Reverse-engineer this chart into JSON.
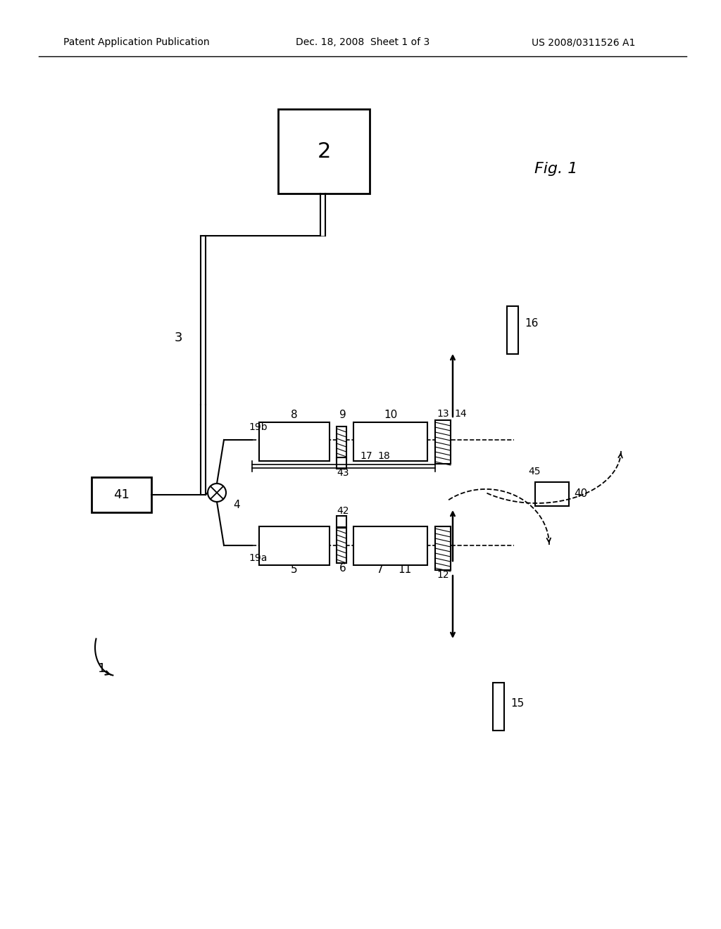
{
  "bg_color": "#ffffff",
  "lc": "#000000",
  "header_left": "Patent Application Publication",
  "header_mid": "Dec. 18, 2008  Sheet 1 of 3",
  "header_right": "US 2008/0311526 A1"
}
